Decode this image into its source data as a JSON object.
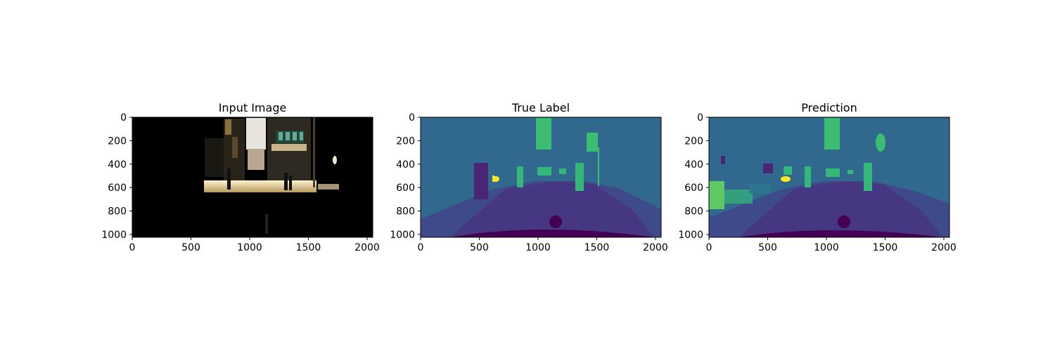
{
  "chart_data": [
    {
      "type": "heatmap",
      "title": "Input Image",
      "xlim": [
        0,
        2048
      ],
      "ylim": [
        1024,
        0
      ],
      "xticks": [
        0,
        500,
        1000,
        1500,
        2000
      ],
      "yticks": [
        0,
        200,
        400,
        600,
        800,
        1000
      ],
      "content": "dark street photograph"
    },
    {
      "type": "heatmap",
      "title": "True Label",
      "xlim": [
        0,
        2048
      ],
      "ylim": [
        1024,
        0
      ],
      "xticks": [
        0,
        500,
        1000,
        1500,
        2000
      ],
      "yticks": [
        0,
        200,
        400,
        600,
        800,
        1000
      ],
      "content": "segmentation label map"
    },
    {
      "type": "heatmap",
      "title": "Prediction",
      "xlim": [
        0,
        2048
      ],
      "ylim": [
        1024,
        0
      ],
      "xticks": [
        0,
        500,
        1000,
        1500,
        2000
      ],
      "yticks": [
        0,
        200,
        400,
        600,
        800,
        1000
      ],
      "content": "predicted segmentation map"
    }
  ],
  "colors": {
    "background_class": "#31688e",
    "road_class": "#453781",
    "sidewalk_class": "#3e4a89",
    "person_class": "#35b779",
    "sign_class": "#3dbc74",
    "ego_vehicle_class": "#440154",
    "rider_class": "#fde725",
    "wall_class": "#482575",
    "vegetation_class": "#5ec962"
  }
}
